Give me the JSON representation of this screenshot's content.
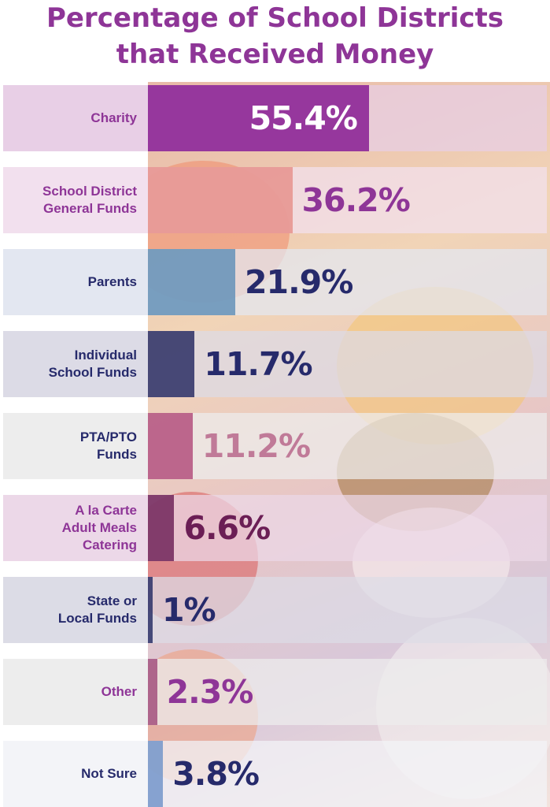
{
  "title": [
    "Percentage of School Districts",
    "that Received Money"
  ],
  "chart_data": {
    "type": "bar",
    "orientation": "horizontal",
    "xlim": [
      0,
      100
    ],
    "categories": [
      "Charity",
      "School District General Funds",
      "Parents",
      "Individual School Funds",
      "PTA/PTO Funds",
      "A la Carte Adult Meals Catering",
      "State or Local Funds",
      "Other",
      "Not Sure"
    ],
    "category_lines": [
      [
        "Charity"
      ],
      [
        "School District",
        "General Funds"
      ],
      [
        "Parents"
      ],
      [
        "Individual",
        "School Funds"
      ],
      [
        "PTA/PTO",
        "Funds"
      ],
      [
        "A la Carte",
        "Adult Meals",
        "Catering"
      ],
      [
        "State or",
        "Local Funds"
      ],
      [
        "Other"
      ],
      [
        "Not Sure"
      ]
    ],
    "values": [
      55.4,
      36.2,
      21.9,
      11.7,
      11.2,
      6.6,
      1,
      2.3,
      3.8
    ],
    "value_labels": [
      "55.4%",
      "36.2%",
      "21.9%",
      "11.7%",
      "11.2%",
      "6.6%",
      "1%",
      "2.3%",
      "3.8%"
    ],
    "bar_colors": [
      "#8e2a98",
      "#e58f8a",
      "#5f8fb7",
      "#24285f",
      "#b14b79",
      "#6b1e55",
      "#252a63",
      "#a04b7a",
      "#6f93c8"
    ],
    "label_colors": [
      "#8e3597",
      "#8e3597",
      "#262a6b",
      "#262a6b",
      "#262a6b",
      "#8e3597",
      "#262a6b",
      "#8e3597",
      "#262a6b"
    ],
    "value_colors": [
      "#ffffff",
      "#8e3597",
      "#262a6b",
      "#262a6b",
      "#c07a98",
      "#6b1e55",
      "#262a6b",
      "#8e3597",
      "#262a6b"
    ],
    "band_colors": [
      "#e8cfe6",
      "#f2e0ee",
      "#e3e7f1",
      "#dcdbe6",
      "#ededed",
      "#ecd8e8",
      "#dcdce6",
      "#ededed",
      "#f3f4f8"
    ]
  }
}
